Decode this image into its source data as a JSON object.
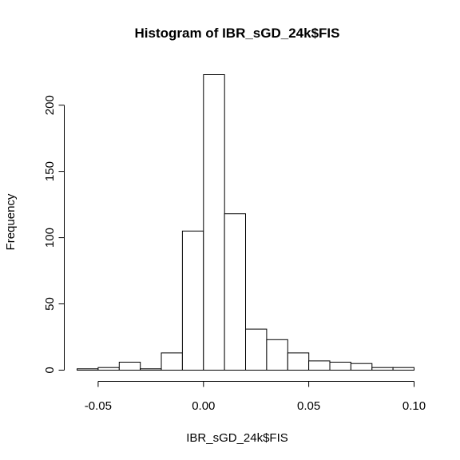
{
  "chart_data": {
    "type": "histogram",
    "title": "Histogram of IBR_sGD_24k$FIS",
    "xlabel": "IBR_sGD_24k$FIS",
    "ylabel": "Frequency",
    "bins": [
      {
        "start": -0.06,
        "end": -0.05,
        "count": 1
      },
      {
        "start": -0.05,
        "end": -0.04,
        "count": 2
      },
      {
        "start": -0.04,
        "end": -0.03,
        "count": 6
      },
      {
        "start": -0.03,
        "end": -0.02,
        "count": 1
      },
      {
        "start": -0.02,
        "end": -0.01,
        "count": 13
      },
      {
        "start": -0.01,
        "end": 0.0,
        "count": 105
      },
      {
        "start": 0.0,
        "end": 0.01,
        "count": 223
      },
      {
        "start": 0.01,
        "end": 0.02,
        "count": 118
      },
      {
        "start": 0.02,
        "end": 0.03,
        "count": 31
      },
      {
        "start": 0.03,
        "end": 0.04,
        "count": 23
      },
      {
        "start": 0.04,
        "end": 0.05,
        "count": 13
      },
      {
        "start": 0.05,
        "end": 0.06,
        "count": 7
      },
      {
        "start": 0.06,
        "end": 0.07,
        "count": 6
      },
      {
        "start": 0.07,
        "end": 0.08,
        "count": 5
      },
      {
        "start": 0.08,
        "end": 0.09,
        "count": 2
      },
      {
        "start": 0.09,
        "end": 0.1,
        "count": 2
      }
    ],
    "xlim": [
      -0.06,
      0.1
    ],
    "ylim": [
      0,
      223
    ],
    "x_ticks": [
      -0.05,
      0.0,
      0.05,
      0.1
    ],
    "x_tick_labels": [
      "-0.05",
      "0.00",
      "0.05",
      "0.10"
    ],
    "y_ticks": [
      0,
      50,
      100,
      150,
      200
    ],
    "y_tick_labels": [
      "0",
      "50",
      "100",
      "150",
      "200"
    ],
    "grid": false,
    "bar_fill": "#ffffff",
    "bar_stroke": "#000000"
  }
}
